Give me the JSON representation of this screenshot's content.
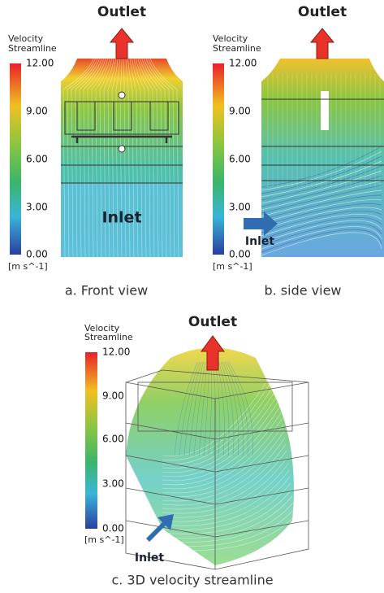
{
  "panels": [
    {
      "caption": "a. Front view",
      "outlet": "Outlet",
      "inlet": "Inlet",
      "legend": {
        "title": "Velocity",
        "subtitle": "Streamline",
        "ticks": [
          "12.00",
          "9.00",
          "6.00",
          "3.00",
          "0.00"
        ],
        "unit": "[m s^-1]"
      }
    },
    {
      "caption": "b. side view",
      "outlet": "Outlet",
      "inlet": "Inlet",
      "legend": {
        "title": "Velocity",
        "subtitle": "Streamline",
        "ticks": [
          "12.00",
          "9.00",
          "6.00",
          "3.00",
          "0.00"
        ],
        "unit": "[m s^-1]"
      }
    },
    {
      "caption": "c. 3D velocity streamline",
      "outlet": "Outlet",
      "inlet": "Inlet",
      "legend": {
        "title": "Velocity",
        "subtitle": "Streamline",
        "ticks": [
          "12.00",
          "9.00",
          "6.00",
          "3.00",
          "0.00"
        ],
        "unit": "[m s^-1]"
      }
    }
  ]
}
